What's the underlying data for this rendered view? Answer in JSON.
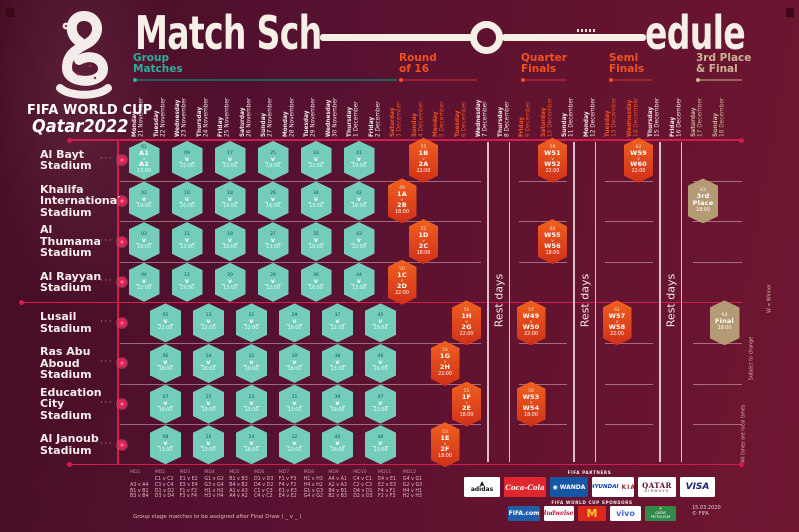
{
  "title": {
    "part1": "Match Sch",
    "part2": "edule"
  },
  "branding": {
    "event": "FIFA WORLD CUP",
    "host": "Qatar2022"
  },
  "phases": [
    {
      "label": "Group\nMatches",
      "color": "#2fae9a"
    },
    {
      "label": "Round\nof 16",
      "color": "#f1511f"
    },
    {
      "label": "Quarter\nFinals",
      "color": "#f1511f"
    },
    {
      "label": "Semi\nFinals",
      "color": "#f1511f"
    },
    {
      "label": "3rd Place\n& Final",
      "color": "#cbb394"
    }
  ],
  "rest_label": "Rest days",
  "notes_right": [
    "W = Winner",
    "Subject to change",
    "All times are local times"
  ],
  "footnote": "Group stage matches to be assigned after Final Draw ( _ v _ )",
  "meta": {
    "date_note": "15.03.2020\n© FIFA"
  },
  "colors": {
    "accent_red": "#d31c4d",
    "teal": "#74ccba",
    "orange": "#f0511f",
    "tan": "#b49a75",
    "background": "#5c1230"
  },
  "legend": {
    "columns": [
      {
        "md": "MD1",
        "fixtures": [
          "",
          "A3 v A4",
          "B1 v B2",
          "B3 v B4"
        ]
      },
      {
        "md": "MD2",
        "fixtures": [
          "C1 v C2",
          "C3 v C4",
          "D1 v D2",
          "D3 v D4"
        ]
      },
      {
        "md": "MD3",
        "fixtures": [
          "E1 v E2",
          "E3 v E4",
          "F1 v F2",
          "F3 v F4"
        ]
      },
      {
        "md": "MD4",
        "fixtures": [
          "G1 v G2",
          "G3 v G4",
          "H1 v H2",
          "H3 v H4"
        ]
      },
      {
        "md": "MD5",
        "fixtures": [
          "B1 v B3",
          "B4 v B2",
          "A1 v A3",
          "A4 v A2"
        ]
      },
      {
        "md": "MD6",
        "fixtures": [
          "D1 v D3",
          "D4 v D2",
          "C1 v C3",
          "C4 v C2"
        ]
      },
      {
        "md": "MD7",
        "fixtures": [
          "F1 v F3",
          "F4 v F2",
          "E1 v E3",
          "E4 v E2"
        ]
      },
      {
        "md": "MD8",
        "fixtures": [
          "H1 v H3",
          "H4 v H2",
          "G1 v G3",
          "G4 v G2"
        ]
      },
      {
        "md": "MD9",
        "fixtures": [
          "A4 v A1",
          "A2 v A3",
          "B4 v B1",
          "B2 v B3"
        ]
      },
      {
        "md": "MD10",
        "fixtures": [
          "C4 v C1",
          "C2 v C3",
          "D4 v D1",
          "D2 v D3"
        ]
      },
      {
        "md": "MD11",
        "fixtures": [
          "E4 v E1",
          "E2 v E3",
          "F4 v F1",
          "F2 v F3"
        ]
      },
      {
        "md": "MD12",
        "fixtures": [
          "G4 v G1",
          "G2 v G3",
          "H4 v H1",
          "H2 v H3"
        ]
      }
    ]
  },
  "sponsors": {
    "partners_label": "FIFA PARTNERS",
    "sponsors_label": "FIFA WORLD CUP SPONSORS",
    "partners": [
      {
        "name": "adidas",
        "cls": "adidas",
        "text": "adidas"
      },
      {
        "name": "coca-cola",
        "cls": "coke",
        "text": "Coca-Cola"
      },
      {
        "name": "wanda",
        "cls": "wanda",
        "text": "WANDA"
      },
      {
        "name": "hyundai-kia",
        "cls": "hyundai",
        "text": "HYUNDAI|KIA"
      },
      {
        "name": "qatar-airways",
        "cls": "qatarair",
        "text": "QATAR|AIRWAYS"
      },
      {
        "name": "visa",
        "cls": "visa",
        "text": "VISA"
      }
    ],
    "event_sponsors": [
      {
        "name": "fifa-com",
        "cls": "fifacom",
        "text": "FIFA.com"
      },
      {
        "name": "budweiser",
        "cls": "bud",
        "text": "Budweiser"
      },
      {
        "name": "mcdonalds",
        "cls": "mcd",
        "text": "M"
      },
      {
        "name": "vivo",
        "cls": "vivo",
        "text": "vivo"
      },
      {
        "name": "qatar-petroleum",
        "cls": "qp",
        "text": "QATAR|PETROLEUM"
      }
    ]
  },
  "chart_data": {
    "type": "timeline",
    "title": "Match Schedule",
    "stadiums": [
      "Al Bayt\nStadium",
      "Khalifa\nInternational\nStadium",
      "Al\nThumama\nStadium",
      "Al Rayyan\nStadium",
      "Lusail\nStadium",
      "Ras Abu\nAboud\nStadium",
      "Education\nCity\nStadium",
      "Al Janoub\nStadium"
    ],
    "dates": [
      {
        "day": "Monday",
        "date": "21 November",
        "phase": "group"
      },
      {
        "day": "Tuesday",
        "date": "22 November",
        "phase": "group"
      },
      {
        "day": "Wednesday",
        "date": "23 November",
        "phase": "group"
      },
      {
        "day": "Thursday",
        "date": "24 November",
        "phase": "group"
      },
      {
        "day": "Friday",
        "date": "25 November",
        "phase": "group"
      },
      {
        "day": "Saturday",
        "date": "26 November",
        "phase": "group"
      },
      {
        "day": "Sunday",
        "date": "27 November",
        "phase": "group"
      },
      {
        "day": "Monday",
        "date": "28 November",
        "phase": "group"
      },
      {
        "day": "Tuesday",
        "date": "29 November",
        "phase": "group"
      },
      {
        "day": "Wednesday",
        "date": "30 November",
        "phase": "group"
      },
      {
        "day": "Thursday",
        "date": "1 December",
        "phase": "group"
      },
      {
        "day": "Friday",
        "date": "2 December",
        "phase": "group"
      },
      {
        "day": "Saturday",
        "date": "3 December",
        "phase": "r16"
      },
      {
        "day": "Sunday",
        "date": "4 December",
        "phase": "r16"
      },
      {
        "day": "Monday",
        "date": "5 December",
        "phase": "r16"
      },
      {
        "day": "Tuesday",
        "date": "6 December",
        "phase": "r16"
      },
      {
        "day": "Wednesday",
        "date": "7 December",
        "phase": "rest"
      },
      {
        "day": "Thursday",
        "date": "8 December",
        "phase": "rest"
      },
      {
        "day": "Friday",
        "date": "9 December",
        "phase": "qf"
      },
      {
        "day": "Saturday",
        "date": "10 December",
        "phase": "qf"
      },
      {
        "day": "Sunday",
        "date": "11 December",
        "phase": "rest"
      },
      {
        "day": "Monday",
        "date": "12 December",
        "phase": "rest"
      },
      {
        "day": "Tuesday",
        "date": "13 December",
        "phase": "sf"
      },
      {
        "day": "Wednesday",
        "date": "14 December",
        "phase": "sf"
      },
      {
        "day": "Thursday",
        "date": "15 December",
        "phase": "rest"
      },
      {
        "day": "Friday",
        "date": "16 December",
        "phase": "rest"
      },
      {
        "day": "Saturday",
        "date": "17 December",
        "phase": "final"
      },
      {
        "day": "Sunday",
        "date": "18 December",
        "phase": "final"
      }
    ],
    "rest_zones": [
      {
        "dates": [
          16,
          17
        ]
      },
      {
        "dates": [
          20,
          21
        ]
      },
      {
        "dates": [
          24,
          25
        ]
      }
    ],
    "group_matches": [
      {
        "no": "01",
        "s": 0,
        "d": 0,
        "teams": "A1 v A2",
        "time": "13:00"
      },
      {
        "no": "02",
        "s": 1,
        "d": 0,
        "teams": "_ v _",
        "time": "19:00"
      },
      {
        "no": "03",
        "s": 2,
        "d": 0,
        "teams": "_ v _",
        "time": "16:00"
      },
      {
        "no": "04",
        "s": 3,
        "d": 0,
        "teams": "_ v _",
        "time": "22:00"
      },
      {
        "no": "05",
        "s": 4,
        "d": 1,
        "teams": "_ v _",
        "time": "22:00"
      },
      {
        "no": "06",
        "s": 5,
        "d": 1,
        "teams": "_ v _",
        "time": "19:00"
      },
      {
        "no": "07",
        "s": 6,
        "d": 1,
        "teams": "_ v _",
        "time": "16:00"
      },
      {
        "no": "08",
        "s": 7,
        "d": 1,
        "teams": "_ v _",
        "time": "13:00"
      },
      {
        "no": "09",
        "s": 0,
        "d": 2,
        "teams": "_ v _",
        "time": "22:00"
      },
      {
        "no": "10",
        "s": 1,
        "d": 2,
        "teams": "_ v _",
        "time": "16:00"
      },
      {
        "no": "11",
        "s": 2,
        "d": 2,
        "teams": "_ v _",
        "time": "13:00"
      },
      {
        "no": "12",
        "s": 3,
        "d": 2,
        "teams": "_ v _",
        "time": "19:00"
      },
      {
        "no": "13",
        "s": 4,
        "d": 3,
        "teams": "_ v _",
        "time": "22:00"
      },
      {
        "no": "14",
        "s": 5,
        "d": 3,
        "teams": "_ v _",
        "time": "16:00"
      },
      {
        "no": "15",
        "s": 6,
        "d": 3,
        "teams": "_ v _",
        "time": "19:00"
      },
      {
        "no": "16",
        "s": 7,
        "d": 3,
        "teams": "_ v _",
        "time": "13:00"
      },
      {
        "no": "17",
        "s": 0,
        "d": 4,
        "teams": "_ v _",
        "time": "22:00"
      },
      {
        "no": "18",
        "s": 1,
        "d": 4,
        "teams": "_ v _",
        "time": "19:00"
      },
      {
        "no": "19",
        "s": 2,
        "d": 4,
        "teams": "_ v _",
        "time": "16:00"
      },
      {
        "no": "20",
        "s": 3,
        "d": 4,
        "teams": "_ v _",
        "time": "13:00"
      },
      {
        "no": "21",
        "s": 4,
        "d": 5,
        "teams": "_ v _",
        "time": "22:00"
      },
      {
        "no": "22",
        "s": 5,
        "d": 5,
        "teams": "_ v _",
        "time": "19:00"
      },
      {
        "no": "23",
        "s": 6,
        "d": 5,
        "teams": "_ v _",
        "time": "13:00"
      },
      {
        "no": "24",
        "s": 7,
        "d": 5,
        "teams": "_ v _",
        "time": "16:00"
      },
      {
        "no": "25",
        "s": 0,
        "d": 6,
        "teams": "_ v _",
        "time": "19:00"
      },
      {
        "no": "26",
        "s": 1,
        "d": 6,
        "teams": "_ v _",
        "time": "16:00"
      },
      {
        "no": "27",
        "s": 2,
        "d": 6,
        "teams": "_ v _",
        "time": "13:00"
      },
      {
        "no": "28",
        "s": 3,
        "d": 6,
        "teams": "_ v _",
        "time": "22:00"
      },
      {
        "no": "29",
        "s": 4,
        "d": 7,
        "teams": "_ v _",
        "time": "19:00"
      },
      {
        "no": "30",
        "s": 5,
        "d": 7,
        "teams": "_ v _",
        "time": "16:00"
      },
      {
        "no": "31",
        "s": 6,
        "d": 7,
        "teams": "_ v _",
        "time": "13:00"
      },
      {
        "no": "32",
        "s": 7,
        "d": 7,
        "teams": "_ v _",
        "time": "22:00"
      },
      {
        "no": "33",
        "s": 0,
        "d": 8,
        "teams": "_ v _",
        "time": "22:00"
      },
      {
        "no": "34",
        "s": 1,
        "d": 8,
        "teams": "_ v _",
        "time": "13:00"
      },
      {
        "no": "35",
        "s": 2,
        "d": 8,
        "teams": "_ v _",
        "time": "19:00"
      },
      {
        "no": "36",
        "s": 3,
        "d": 8,
        "teams": "_ v _",
        "time": "16:00"
      },
      {
        "no": "37",
        "s": 4,
        "d": 9,
        "teams": "_ v _",
        "time": "22:00"
      },
      {
        "no": "38",
        "s": 5,
        "d": 9,
        "teams": "_ v _",
        "time": "13:00"
      },
      {
        "no": "39",
        "s": 6,
        "d": 9,
        "teams": "_ v _",
        "time": "19:00"
      },
      {
        "no": "40",
        "s": 7,
        "d": 9,
        "teams": "_ v _",
        "time": "16:00"
      },
      {
        "no": "41",
        "s": 0,
        "d": 10,
        "teams": "_ v _",
        "time": "19:00"
      },
      {
        "no": "42",
        "s": 1,
        "d": 10,
        "teams": "_ v _",
        "time": "16:00"
      },
      {
        "no": "43",
        "s": 2,
        "d": 10,
        "teams": "_ v _",
        "time": "22:00"
      },
      {
        "no": "44",
        "s": 3,
        "d": 10,
        "teams": "_ v _",
        "time": "13:00"
      },
      {
        "no": "45",
        "s": 4,
        "d": 11,
        "teams": "_ v _",
        "time": "19:00"
      },
      {
        "no": "46",
        "s": 5,
        "d": 11,
        "teams": "_ v _",
        "time": "16:00"
      },
      {
        "no": "47",
        "s": 6,
        "d": 11,
        "teams": "_ v _",
        "time": "22:00"
      },
      {
        "no": "48",
        "s": 7,
        "d": 11,
        "teams": "_ v _",
        "time": "13:00"
      }
    ],
    "knockout_matches": [
      {
        "no": "49",
        "s": 1,
        "d": 12,
        "t1": "1A",
        "t2": "2B",
        "time": "18:00",
        "kind": "r16"
      },
      {
        "no": "50",
        "s": 3,
        "d": 12,
        "t1": "1C",
        "t2": "2D",
        "time": "22:00",
        "kind": "r16"
      },
      {
        "no": "51",
        "s": 0,
        "d": 13,
        "t1": "1B",
        "t2": "2A",
        "time": "22:00",
        "kind": "r16"
      },
      {
        "no": "52",
        "s": 2,
        "d": 13,
        "t1": "1D",
        "t2": "2C",
        "time": "18:00",
        "kind": "r16"
      },
      {
        "no": "53",
        "s": 7,
        "d": 14,
        "t1": "1E",
        "t2": "2F",
        "time": "18:00",
        "kind": "r16"
      },
      {
        "no": "54",
        "s": 5,
        "d": 14,
        "t1": "1G",
        "t2": "2H",
        "time": "22:00",
        "kind": "r16"
      },
      {
        "no": "55",
        "s": 6,
        "d": 15,
        "t1": "1F",
        "t2": "2E",
        "time": "18:00",
        "kind": "r16"
      },
      {
        "no": "56",
        "s": 4,
        "d": 15,
        "t1": "1H",
        "t2": "2G",
        "time": "22:00",
        "kind": "r16"
      },
      {
        "no": "57",
        "s": 4,
        "d": 18,
        "t1": "W49",
        "t2": "W50",
        "time": "22:00",
        "kind": "qf"
      },
      {
        "no": "58",
        "s": 6,
        "d": 18,
        "t1": "W53",
        "t2": "W54",
        "time": "18:00",
        "kind": "qf"
      },
      {
        "no": "59",
        "s": 0,
        "d": 19,
        "t1": "W51",
        "t2": "W52",
        "time": "22:00",
        "kind": "qf"
      },
      {
        "no": "60",
        "s": 2,
        "d": 19,
        "t1": "W55",
        "t2": "W56",
        "time": "18:00",
        "kind": "qf"
      },
      {
        "no": "61",
        "s": 4,
        "d": 22,
        "t1": "W57",
        "t2": "W58",
        "time": "22:00",
        "kind": "sf"
      },
      {
        "no": "62",
        "s": 0,
        "d": 23,
        "t1": "W59",
        "t2": "W60",
        "time": "22:00",
        "kind": "sf"
      },
      {
        "no": "63",
        "s": 1,
        "d": 26,
        "title": "3rd Place",
        "time": "18:00",
        "kind": "tan"
      },
      {
        "no": "64",
        "s": 4,
        "d": 27,
        "title": "Final",
        "time": "18:00",
        "kind": "tan"
      }
    ]
  }
}
